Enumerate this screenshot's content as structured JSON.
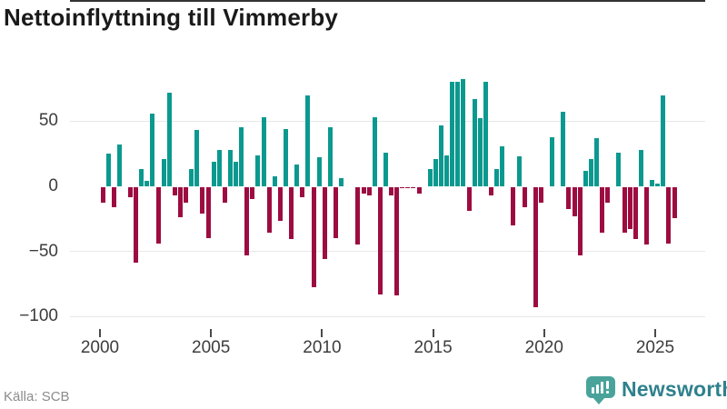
{
  "header": {
    "title": "Nettoinflyttning till Vimmerby"
  },
  "footer": {
    "source": "Källa: SCB",
    "logo_text": "Newsworthy"
  },
  "colors": {
    "positive_bar": "#0b998f",
    "negative_bar": "#9d0c41",
    "zero_line": "#333333",
    "gridline": "#e7e7e7",
    "axis_text": "#3d3d3d",
    "title_text": "#1a1a1a",
    "source_text": "#8c8c8c",
    "logo_icon": "#4aa39a",
    "logo_text": "#2e818c"
  },
  "chart_data": {
    "type": "bar",
    "title": "Nettoinflyttning till Vimmerby",
    "xlabel": "",
    "ylabel": "",
    "x_unit": "quarter",
    "grid": "horizontal",
    "legend": "none",
    "ylim": [
      -108,
      100
    ],
    "y_ticks": [
      50,
      0,
      -50,
      -100
    ],
    "y_tick_labels": [
      "50",
      "0",
      "−50",
      "−100"
    ],
    "x_ticks": [
      2000,
      2005,
      2010,
      2015,
      2020,
      2025
    ],
    "x_tick_labels": [
      "2000",
      "2005",
      "2010",
      "2015",
      "2020",
      "2025"
    ],
    "categories": [
      "2000 Q1",
      "2000 Q2",
      "2000 Q3",
      "2000 Q4",
      "2001 Q1",
      "2001 Q2",
      "2001 Q3",
      "2001 Q4",
      "2002 Q1",
      "2002 Q2",
      "2002 Q3",
      "2002 Q4",
      "2003 Q1",
      "2003 Q2",
      "2003 Q3",
      "2003 Q4",
      "2004 Q1",
      "2004 Q2",
      "2004 Q3",
      "2004 Q4",
      "2005 Q1",
      "2005 Q2",
      "2005 Q3",
      "2005 Q4",
      "2006 Q1",
      "2006 Q2",
      "2006 Q3",
      "2006 Q4",
      "2007 Q1",
      "2007 Q2",
      "2007 Q3",
      "2007 Q4",
      "2008 Q1",
      "2008 Q2",
      "2008 Q3",
      "2008 Q4",
      "2009 Q1",
      "2009 Q2",
      "2009 Q3",
      "2009 Q4",
      "2010 Q1",
      "2010 Q2",
      "2010 Q3",
      "2010 Q4",
      "2011 Q1",
      "2011 Q2",
      "2011 Q3",
      "2011 Q4",
      "2012 Q1",
      "2012 Q2",
      "2012 Q3",
      "2012 Q4",
      "2013 Q1",
      "2013 Q2",
      "2013 Q3",
      "2013 Q4",
      "2014 Q1",
      "2014 Q2",
      "2014 Q3",
      "2014 Q4",
      "2015 Q1",
      "2015 Q2",
      "2015 Q3",
      "2015 Q4",
      "2016 Q1",
      "2016 Q2",
      "2016 Q3",
      "2016 Q4",
      "2017 Q1",
      "2017 Q2",
      "2017 Q3",
      "2017 Q4",
      "2018 Q1",
      "2018 Q2",
      "2018 Q3",
      "2018 Q4",
      "2019 Q1",
      "2019 Q2",
      "2019 Q3",
      "2019 Q4",
      "2020 Q1",
      "2020 Q2",
      "2020 Q3",
      "2020 Q4",
      "2021 Q1",
      "2021 Q2",
      "2021 Q3",
      "2021 Q4",
      "2022 Q1",
      "2022 Q2",
      "2022 Q3",
      "2022 Q4",
      "2023 Q1",
      "2023 Q2",
      "2023 Q3",
      "2023 Q4",
      "2024 Q1",
      "2024 Q2",
      "2024 Q3",
      "2024 Q4",
      "2025 Q1",
      "2025 Q2",
      "2025 Q3",
      "2025 Q4"
    ],
    "values": [
      -12,
      25,
      -15,
      32,
      0,
      -8,
      -58,
      13,
      4,
      56,
      -43,
      21,
      72,
      -6,
      -23,
      -12,
      13,
      43,
      -20,
      -39,
      19,
      28,
      -12,
      28,
      19,
      45,
      -52,
      -9,
      24,
      53,
      -35,
      8,
      -26,
      44,
      -40,
      17,
      -8,
      70,
      -77,
      22,
      -55,
      45,
      -39,
      6,
      0,
      0,
      -44,
      -5,
      -6,
      53,
      -82,
      26,
      -6,
      -83,
      -1,
      -1,
      -1,
      -5,
      0,
      13,
      21,
      47,
      24,
      80,
      80,
      82,
      -18,
      67,
      52,
      80,
      -6,
      13,
      31,
      0,
      -29,
      23,
      -15,
      0,
      -92,
      -12,
      0,
      38,
      0,
      57,
      -17,
      -22,
      -52,
      12,
      21,
      37,
      -35,
      -12,
      0,
      26,
      -35,
      -32,
      -40,
      28,
      -44,
      5,
      2,
      70,
      -43,
      -24
    ]
  }
}
